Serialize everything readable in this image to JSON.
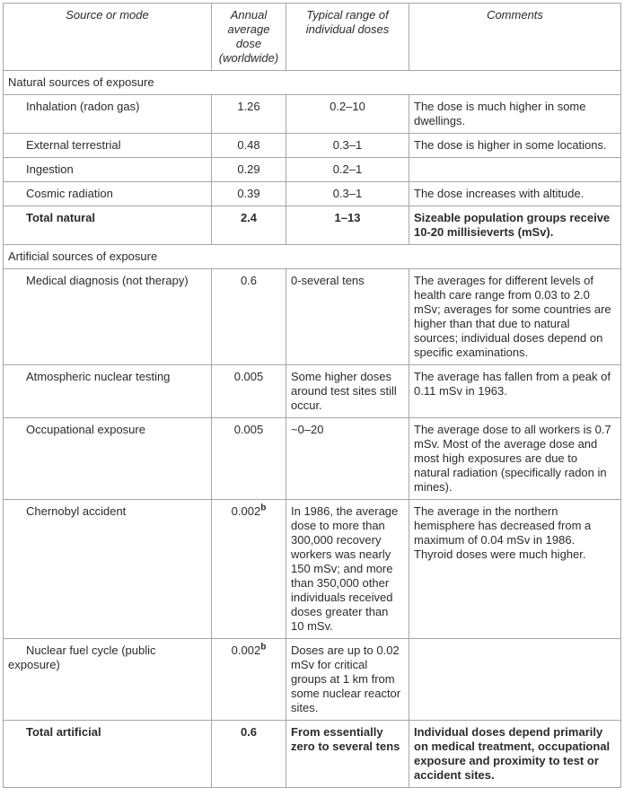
{
  "table": {
    "headers": {
      "source": "Source or mode",
      "dose": "Annual average dose (worldwide)",
      "range": "Typical range of individual doses",
      "comments": "Comments"
    },
    "sections": [
      {
        "title": "Natural sources of exposure",
        "rows": [
          {
            "source": "Inhalation (radon gas)",
            "dose": "1.26",
            "range": "0.2–10",
            "comments": "The dose is much higher in some dwellings."
          },
          {
            "source": "External terrestrial",
            "dose": "0.48",
            "range": "0.3–1",
            "comments": "The dose is higher in some locations."
          },
          {
            "source": "Ingestion",
            "dose": "0.29",
            "range": "0.2–1",
            "comments": ""
          },
          {
            "source": "Cosmic radiation",
            "dose": "0.39",
            "range": "0.3–1",
            "comments": "The dose increases with altitude."
          },
          {
            "source": "Total natural",
            "dose": "2.4",
            "range": "1–13",
            "comments": "Sizeable population groups receive 10-20 millisieverts (mSv)."
          }
        ]
      },
      {
        "title": "Artificial sources of exposure",
        "rows": [
          {
            "source": "Medical diagnosis (not therapy)",
            "dose": "0.6",
            "range": "0-several tens",
            "comments": "The averages for different levels of health care range from 0.03 to 2.0 mSv; averages for some countries are higher than that due to natural sources; individual doses depend on specific examinations."
          },
          {
            "source": "Atmospheric nuclear testing",
            "dose": "0.005",
            "range": "Some higher doses around test sites still occur.",
            "comments": "The average has fallen from a peak of 0.11 mSv in 1963."
          },
          {
            "source": "Occupational exposure",
            "dose": "0.005",
            "range": "~0–20",
            "comments": "The average dose to all workers is 0.7 mSv. Most of the average dose and most high exposures are due to natural radiation (specifically radon in mines)."
          },
          {
            "source": "Chernobyl accident",
            "dose": "0.002",
            "dose_sup": "b",
            "range": "In 1986, the average dose to more than 300,000 recovery workers was nearly 150 mSv; and more than 350,000 other individuals received doses greater than 10 mSv.",
            "comments": "The average in the northern hemisphere has decreased from a maximum of 0.04 mSv in 1986. Thyroid doses were much higher."
          },
          {
            "source": "Nuclear fuel cycle (public exposure)",
            "dose": "0.002",
            "dose_sup": "b",
            "range": "Doses are up to 0.02 mSv for critical groups at 1 km from some nuclear reactor sites.",
            "comments": ""
          },
          {
            "source": "Total artificial",
            "dose": "0.6",
            "range": "From essentially zero to several tens",
            "comments": "Individual doses depend primarily on medical treatment, occupational exposure and proximity to test or accident sites."
          }
        ]
      }
    ]
  }
}
